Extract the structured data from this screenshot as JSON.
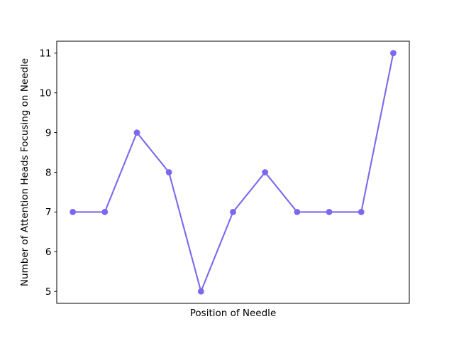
{
  "chart_data": {
    "type": "line",
    "x": [
      0,
      1,
      2,
      3,
      4,
      5,
      6,
      7,
      8,
      9,
      10
    ],
    "values": [
      7,
      7,
      9,
      8,
      5,
      7,
      8,
      7,
      7,
      7,
      11
    ],
    "xlabel": "Position of Needle",
    "ylabel": "Number of Attention Heads Focusing on Needle",
    "yticks": [
      5,
      6,
      7,
      8,
      9,
      10,
      11
    ],
    "xticks": [],
    "xlim": [
      -0.5,
      10.5
    ],
    "ylim": [
      4.7,
      11.3
    ],
    "grid": false,
    "line_color": "#7B68EE",
    "marker": "o",
    "marker_color": "#7B68EE",
    "background_color": "#ffffff",
    "spine_color": "#000000"
  }
}
